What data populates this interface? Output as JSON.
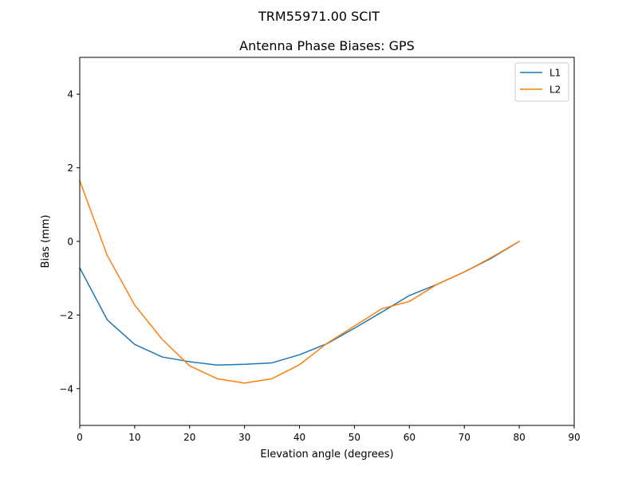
{
  "suptitle": "TRM55971.00      SCIT",
  "chart_data": {
    "type": "line",
    "title": "Antenna Phase Biases: GPS",
    "xlabel": "Elevation angle (degrees)",
    "ylabel": "Bias (mm)",
    "xlim": [
      0,
      90
    ],
    "ylim": [
      -5,
      5
    ],
    "xticks": [
      0,
      10,
      20,
      30,
      40,
      50,
      60,
      70,
      80,
      90
    ],
    "yticks": [
      -4,
      -2,
      0,
      2,
      4
    ],
    "ytick_labels": [
      "−4",
      "−2",
      "0",
      "2",
      "4"
    ],
    "grid": false,
    "legend_position": "upper right",
    "x": [
      0,
      5,
      10,
      15,
      20,
      25,
      30,
      35,
      40,
      45,
      50,
      55,
      60,
      65,
      70,
      75,
      80
    ],
    "series": [
      {
        "name": "L1",
        "color": "#1f77b4",
        "values": [
          -0.72,
          -2.13,
          -2.8,
          -3.14,
          -3.27,
          -3.36,
          -3.34,
          -3.3,
          -3.08,
          -2.78,
          -2.36,
          -1.92,
          -1.47,
          -1.17,
          -0.83,
          -0.45,
          0.0
        ]
      },
      {
        "name": "L2",
        "color": "#ff7f0e",
        "values": [
          1.65,
          -0.38,
          -1.73,
          -2.66,
          -3.38,
          -3.73,
          -3.85,
          -3.73,
          -3.35,
          -2.77,
          -2.3,
          -1.83,
          -1.63,
          -1.17,
          -0.83,
          -0.43,
          0.0
        ]
      }
    ]
  }
}
